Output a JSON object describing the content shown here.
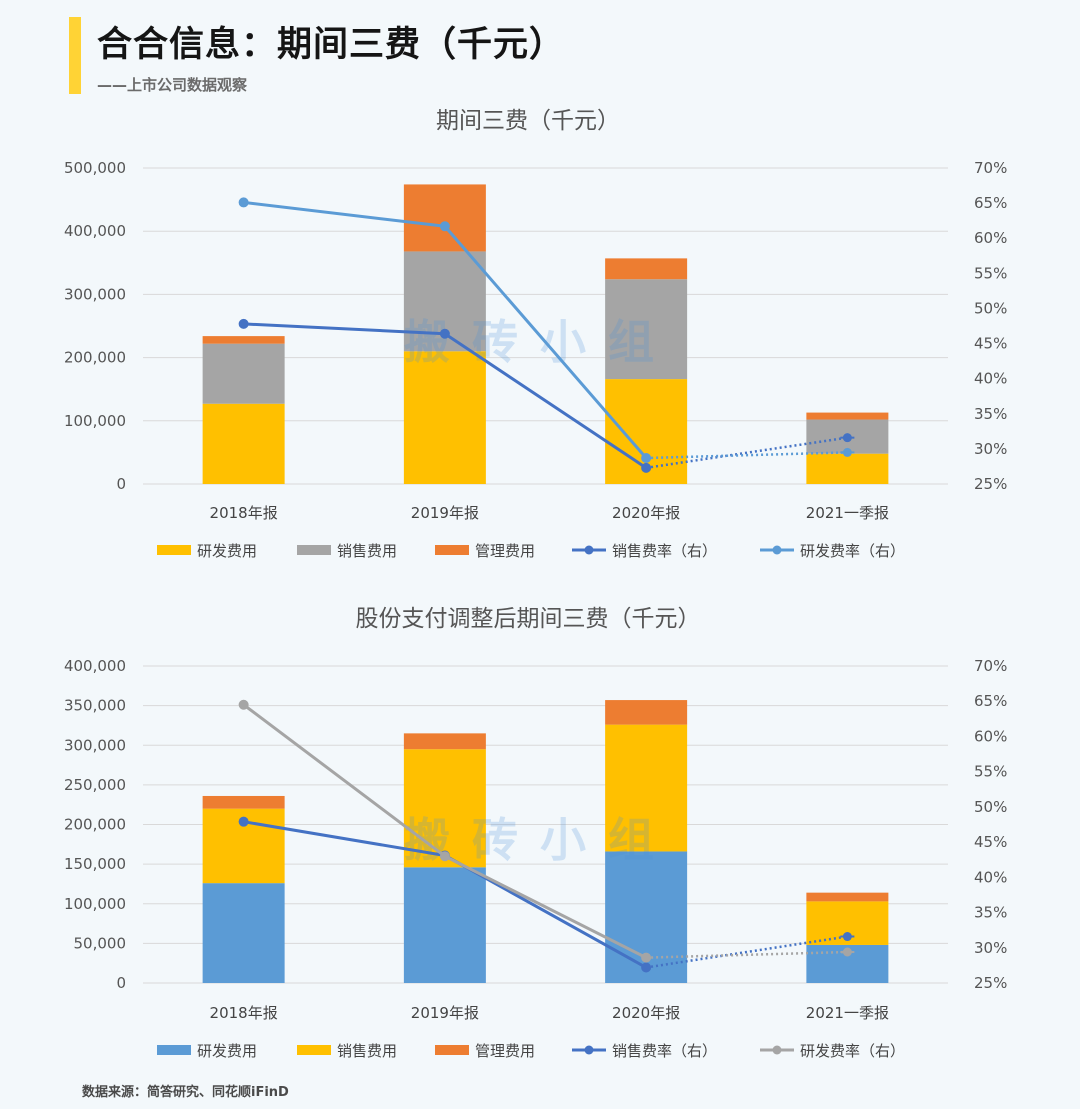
{
  "header": {
    "title": "合合信息：期间三费（千元）",
    "subtitle": "——上市公司数据观察"
  },
  "footer": {
    "source": "数据来源：简答研究、同花顺iFinD"
  },
  "watermark": "搬砖小组",
  "colors": {
    "yellow": "#ffc000",
    "gray": "#a5a5a5",
    "orange": "#ed7d31",
    "blue": "#5b9bd5",
    "dark_blue": "#4472c4",
    "gridline": "#d9d9d9",
    "accent": "#ffd335"
  },
  "chart_data": [
    {
      "type": "bar",
      "stacked": true,
      "title": "期间三费（千元）",
      "categories": [
        "2018年报",
        "2019年报",
        "2020年报",
        "2021一季报"
      ],
      "ylim": [
        0,
        500000
      ],
      "yticks": [
        "0",
        "100,000",
        "200,000",
        "300,000",
        "400,000",
        "500,000"
      ],
      "y2lim": [
        25,
        70
      ],
      "y2ticks": [
        "25%",
        "30%",
        "35%",
        "40%",
        "45%",
        "50%",
        "55%",
        "60%",
        "65%",
        "70%"
      ],
      "series": [
        {
          "name": "研发费用",
          "kind": "bar",
          "color": "#ffc000",
          "values": [
            127000,
            210000,
            166000,
            48000
          ]
        },
        {
          "name": "销售费用",
          "kind": "bar",
          "color": "#a5a5a5",
          "values": [
            95000,
            158000,
            158000,
            54000
          ]
        },
        {
          "name": "管理费用",
          "kind": "bar",
          "color": "#ed7d31",
          "values": [
            12000,
            106000,
            33000,
            11000
          ]
        },
        {
          "name": "销售费率（右）",
          "kind": "line",
          "axis": "right",
          "color": "#4472c4",
          "values": [
            47.8,
            46.4,
            27.3,
            31.6
          ],
          "dotted_last": true
        },
        {
          "name": "研发费率（右）",
          "kind": "line",
          "axis": "right",
          "color": "#5b9bd5",
          "values": [
            65.1,
            61.7,
            28.7,
            29.5
          ],
          "dotted_last": true
        }
      ]
    },
    {
      "type": "bar",
      "stacked": true,
      "title": "股份支付调整后期间三费（千元）",
      "categories": [
        "2018年报",
        "2019年报",
        "2020年报",
        "2021一季报"
      ],
      "ylim": [
        0,
        400000
      ],
      "yticks": [
        "0",
        "50,000",
        "100,000",
        "150,000",
        "200,000",
        "250,000",
        "300,000",
        "350,000",
        "400,000"
      ],
      "y2lim": [
        25,
        70
      ],
      "y2ticks": [
        "25%",
        "30%",
        "35%",
        "40%",
        "45%",
        "50%",
        "55%",
        "60%",
        "65%",
        "70%"
      ],
      "series": [
        {
          "name": "研发费用",
          "kind": "bar",
          "color": "#5b9bd5",
          "values": [
            126000,
            146000,
            166000,
            48000
          ]
        },
        {
          "name": "销售费用",
          "kind": "bar",
          "color": "#ffc000",
          "values": [
            94000,
            149000,
            160000,
            55000
          ]
        },
        {
          "name": "管理费用",
          "kind": "bar",
          "color": "#ed7d31",
          "values": [
            16000,
            20000,
            31000,
            11000
          ]
        },
        {
          "name": "销售费率（右）",
          "kind": "line",
          "axis": "right",
          "color": "#4472c4",
          "values": [
            47.9,
            43.1,
            27.2,
            31.6
          ],
          "dotted_last": true
        },
        {
          "name": "研发费率（右）",
          "kind": "line",
          "axis": "right",
          "color": "#a5a5a5",
          "values": [
            64.5,
            43.0,
            28.6,
            29.4
          ],
          "dotted_last": true
        }
      ]
    }
  ]
}
